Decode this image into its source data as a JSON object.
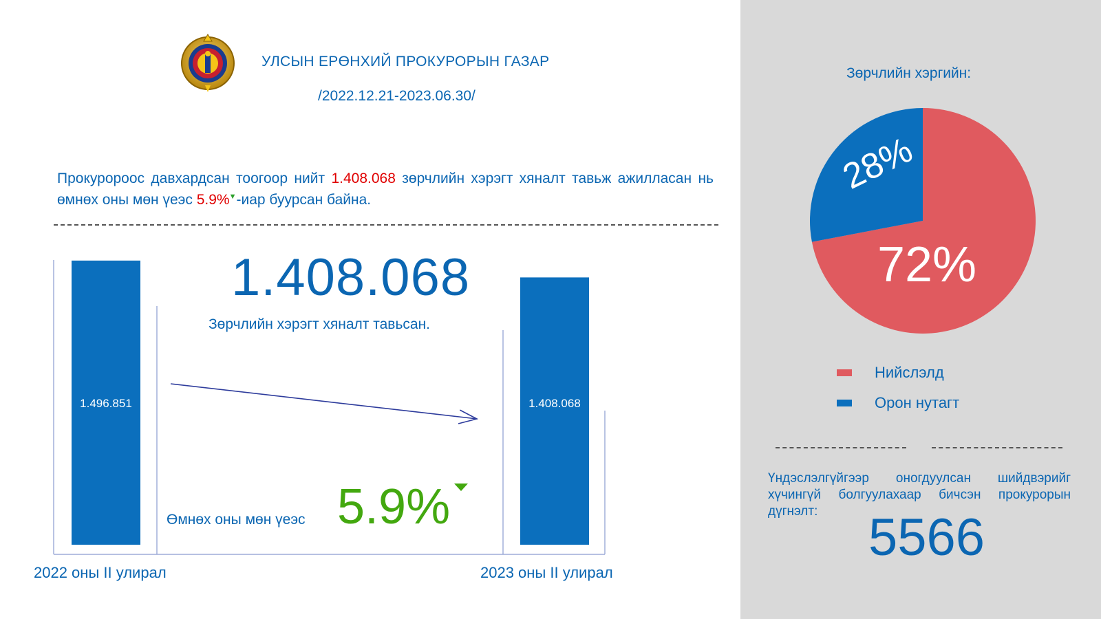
{
  "header": {
    "org_name": "УЛСЫН ЕРӨНХИЙ ПРОКУРОРЫН ГАЗАР",
    "period": "/2022.12.21-2023.06.30/"
  },
  "summary": {
    "part1": "Прокуророос давхардсан тоогоор нийт ",
    "value": "1.408.068",
    "part2": " зөрчлийн хэрэгт хяналт тавьж ажилласан нь өмнөх оны мөн үеэс ",
    "percent": "5.9%",
    "part3": "-иар буурсан байна."
  },
  "highlight": {
    "value": "1.408.068",
    "caption": "Зөрчлийн хэрэгт хяналт тавьсан.",
    "change_label": "Өмнөх оны мөн үеэс",
    "change_value": "5.9%"
  },
  "chart_data": [
    {
      "type": "bar",
      "categories": [
        "2022 оны II улирал",
        "2023 оны II улирал"
      ],
      "values": [
        1496851,
        1408068
      ],
      "data_labels": [
        "1.496.851",
        "1.408.068"
      ],
      "ylim": [
        0,
        1500000
      ],
      "color": "#0b6fbd"
    },
    {
      "type": "pie",
      "title": "Зөрчлийн хэргийн:",
      "labels": [
        "Нийслэлд",
        "Орон нутагт"
      ],
      "values": [
        72,
        28
      ],
      "data_labels": [
        "72%",
        "28%"
      ],
      "colors": [
        "#e05a5f",
        "#0b6fbd"
      ]
    }
  ],
  "note": {
    "text": "Үндэслэлгүйгээр оногдуулсан шийдвэрийг хүчингүй болгуулахаар бичсэн прокурорын дүгнэлт:",
    "value": "5566"
  },
  "colors": {
    "primary_blue": "#0b66b2",
    "accent_red": "#e00000",
    "accent_green": "#43a80f",
    "panel_gray": "#d9d9d9"
  }
}
